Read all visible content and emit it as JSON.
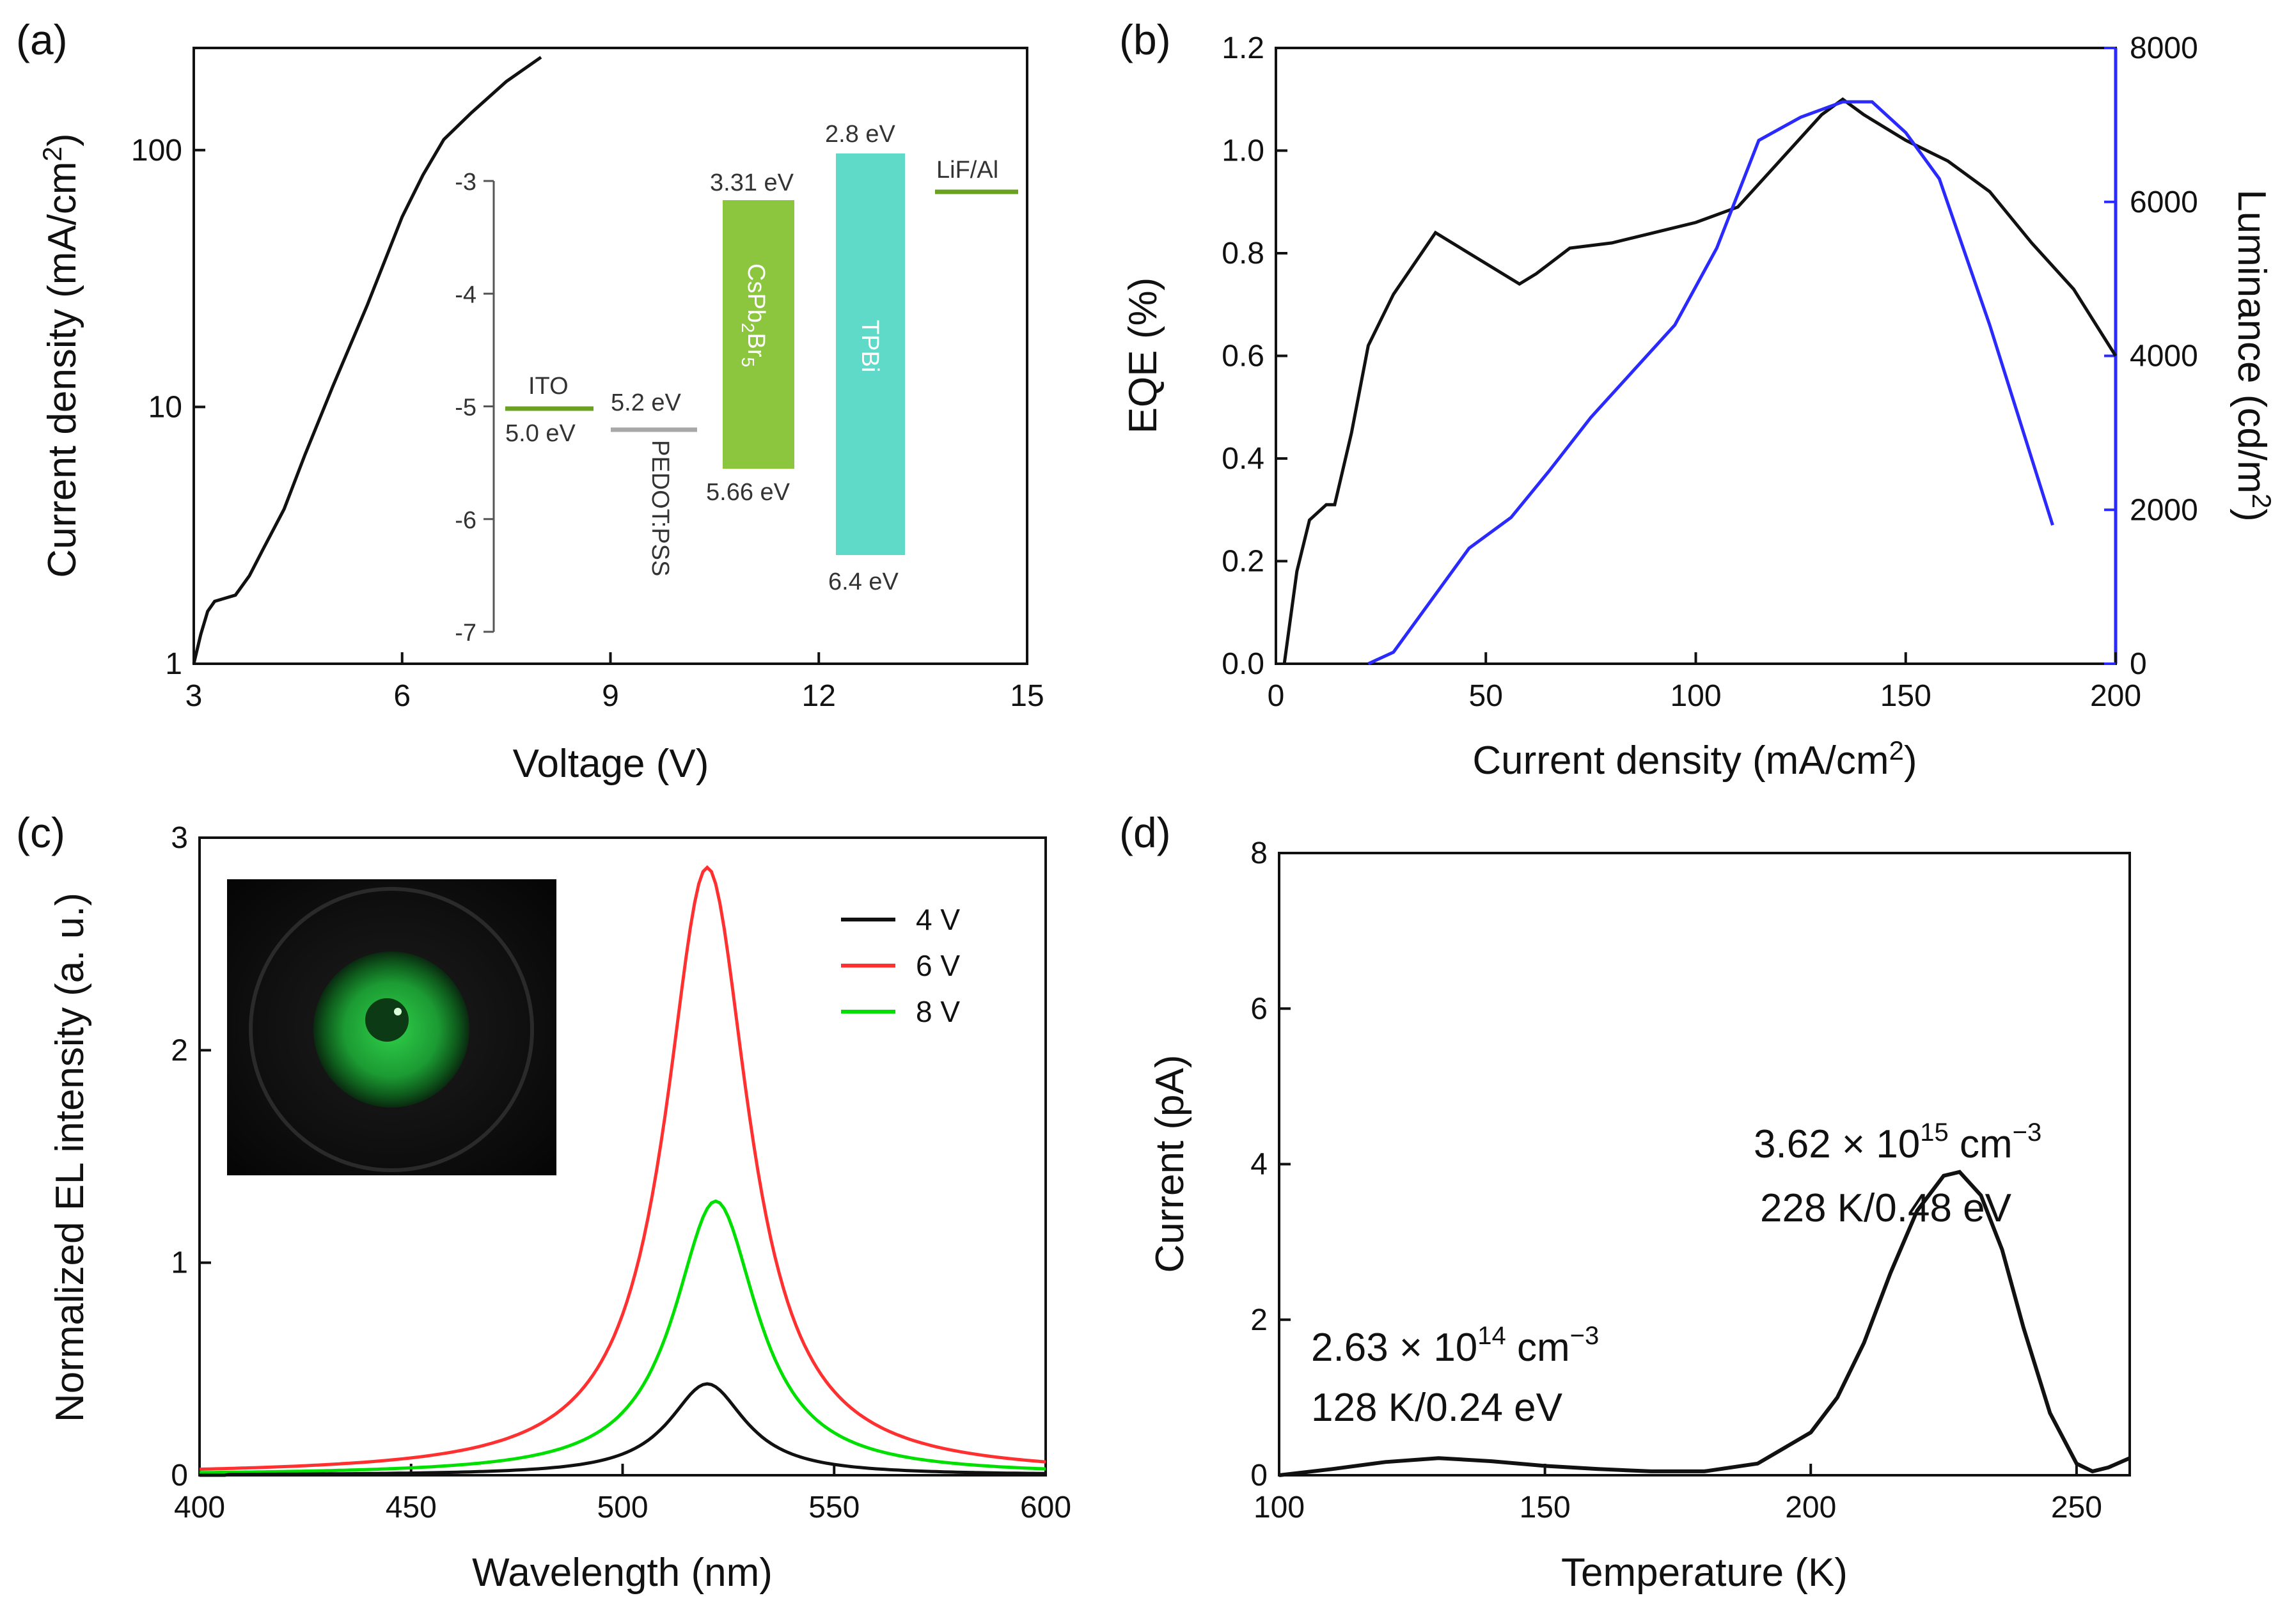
{
  "panels": {
    "a": {
      "label": "(a)"
    },
    "b": {
      "label": "(b)"
    },
    "c": {
      "label": "(c)"
    },
    "d": {
      "label": "(d)"
    }
  },
  "chart_data": [
    {
      "id": "a",
      "type": "line",
      "xlabel": "Voltage (V)",
      "ylabel": "Current density (mA/cm2)",
      "xlim": [
        3,
        15
      ],
      "ylim": [
        1,
        250
      ],
      "yscale": "log",
      "xticks": [
        3,
        6,
        9,
        12,
        15
      ],
      "yticks": [
        1,
        10,
        100
      ],
      "series": [
        {
          "color": "#111111",
          "x": [
            3.0,
            3.1,
            3.2,
            3.3,
            3.45,
            3.6,
            3.8,
            4.0,
            4.3,
            4.6,
            5.0,
            5.5,
            6.0,
            6.3,
            6.6,
            7.0,
            7.5,
            8.0
          ],
          "y": [
            1.0,
            1.3,
            1.6,
            1.75,
            1.8,
            1.85,
            2.2,
            2.8,
            4.0,
            6.5,
            12,
            25,
            55,
            80,
            110,
            140,
            185,
            230
          ]
        }
      ],
      "inset_energy_diagram": {
        "axis_ticks": [
          -3,
          -4,
          -5,
          -6,
          -7
        ],
        "layers": [
          {
            "name": "ITO",
            "level": -5.0,
            "label": "5.0 eV",
            "color": "#6aa121"
          },
          {
            "name": "PEDOT:PSS",
            "level": -5.2,
            "label": "5.2 eV",
            "color": "#a8a8a8"
          },
          {
            "name": "CsPb2Br5",
            "top": -3.31,
            "bottom": -5.66,
            "top_label": "3.31 eV",
            "bottom_label": "5.66 eV",
            "color": "#8cc63f"
          },
          {
            "name": "TPBi",
            "top": -2.8,
            "bottom": -6.4,
            "top_label": "2.8 eV",
            "bottom_label": "6.4 eV",
            "color": "#5fd9c8"
          },
          {
            "name": "LiF/Al",
            "level": -3.1,
            "color": "#6aa121"
          }
        ]
      }
    },
    {
      "id": "b",
      "type": "line",
      "xlabel": "Current density (mA/cm2)",
      "ylabel": "EQE (%)",
      "y2label": "Luminance (cd/m2)",
      "xlim": [
        0,
        200
      ],
      "ylim": [
        0,
        1.2
      ],
      "y2lim": [
        0,
        8000
      ],
      "xticks": [
        0,
        50,
        100,
        150,
        200
      ],
      "yticks": [
        0.0,
        0.2,
        0.4,
        0.6,
        0.8,
        1.0,
        1.2
      ],
      "y2ticks": [
        0,
        2000,
        4000,
        6000,
        8000
      ],
      "series": [
        {
          "axis": "left",
          "color": "#111111",
          "x": [
            2,
            5,
            8,
            12,
            14,
            18,
            22,
            28,
            38,
            48,
            58,
            62,
            70,
            80,
            90,
            100,
            110,
            120,
            130,
            135,
            140,
            150,
            160,
            170,
            180,
            190,
            200
          ],
          "y": [
            0.0,
            0.18,
            0.28,
            0.31,
            0.31,
            0.45,
            0.62,
            0.72,
            0.84,
            0.79,
            0.74,
            0.76,
            0.81,
            0.82,
            0.84,
            0.86,
            0.89,
            0.98,
            1.07,
            1.1,
            1.07,
            1.02,
            0.98,
            0.92,
            0.82,
            0.73,
            0.6
          ]
        },
        {
          "axis": "right",
          "color": "#2a2aff",
          "x": [
            22,
            28,
            46,
            56,
            65,
            75,
            85,
            95,
            105,
            115,
            125,
            135,
            142,
            150,
            158,
            170,
            185
          ],
          "y": [
            0,
            150,
            1500,
            1900,
            2500,
            3200,
            3800,
            4400,
            5400,
            6800,
            7100,
            7300,
            7300,
            6900,
            6300,
            4400,
            1800
          ]
        }
      ]
    },
    {
      "id": "c",
      "type": "line",
      "xlabel": "Wavelength (nm)",
      "ylabel": "Normalized EL intensity (a. u.)",
      "xlim": [
        400,
        600
      ],
      "ylim": [
        0,
        3
      ],
      "xticks": [
        400,
        450,
        500,
        550,
        600
      ],
      "yticks": [
        0,
        1,
        2,
        3
      ],
      "legend_position": "top-right",
      "series": [
        {
          "name": "4 V",
          "color": "#111111",
          "peak_x": 520,
          "peak_y": 0.43,
          "width": 11
        },
        {
          "name": "6 V",
          "color": "#ff3030",
          "peak_x": 520,
          "peak_y": 2.86,
          "width": 12
        },
        {
          "name": "8 V",
          "color": "#00e000",
          "peak_x": 522,
          "peak_y": 1.29,
          "width": 12
        }
      ]
    },
    {
      "id": "d",
      "type": "line",
      "xlabel": "Temperature (K)",
      "ylabel": "Current (pA)",
      "xlim": [
        100,
        260
      ],
      "ylim": [
        0,
        8
      ],
      "xticks": [
        100,
        150,
        200,
        250
      ],
      "yticks": [
        0,
        2,
        4,
        6,
        8
      ],
      "series": [
        {
          "color": "#111111",
          "x": [
            100,
            110,
            120,
            130,
            140,
            150,
            160,
            170,
            180,
            190,
            200,
            205,
            210,
            215,
            220,
            225,
            228,
            232,
            236,
            240,
            245,
            250,
            253,
            256,
            260
          ],
          "y": [
            0.0,
            0.08,
            0.17,
            0.22,
            0.18,
            0.12,
            0.08,
            0.05,
            0.05,
            0.15,
            0.55,
            1.0,
            1.7,
            2.6,
            3.4,
            3.85,
            3.9,
            3.6,
            2.9,
            1.9,
            0.8,
            0.15,
            0.05,
            0.1,
            0.22
          ]
        }
      ],
      "annotations": [
        {
          "text": "3.62 × 10",
          "sup": "15",
          "unit": " cm",
          "unit_sup": "−3",
          "line2": "228 K/0.48 eV"
        },
        {
          "text": "2.63 × 10",
          "sup": "14",
          "unit": " cm",
          "unit_sup": "−3",
          "line2": "128 K/0.24 eV"
        }
      ]
    }
  ]
}
